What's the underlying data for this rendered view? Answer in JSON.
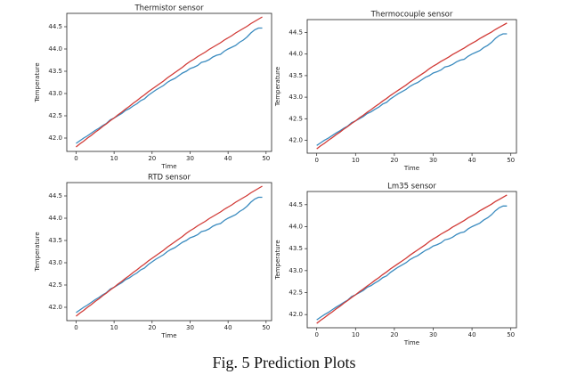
{
  "chart_data": [
    {
      "type": "line",
      "title": "Thermistor sensor",
      "xlabel": "Time",
      "ylabel": "Temperature",
      "x": [
        0,
        1,
        2,
        3,
        4,
        5,
        6,
        7,
        8,
        9,
        10,
        11,
        12,
        13,
        14,
        15,
        16,
        17,
        18,
        19,
        20,
        21,
        22,
        23,
        24,
        25,
        26,
        27,
        28,
        29,
        30,
        31,
        32,
        33,
        34,
        35,
        36,
        37,
        38,
        39,
        40,
        41,
        42,
        43,
        44,
        45,
        46,
        47,
        48,
        49
      ],
      "series": [
        {
          "color": "#3a8bbf",
          "values": [
            41.88,
            41.94,
            42.0,
            42.05,
            42.11,
            42.17,
            42.22,
            42.28,
            42.33,
            42.41,
            42.45,
            42.5,
            42.55,
            42.62,
            42.66,
            42.72,
            42.77,
            42.84,
            42.88,
            42.96,
            43.02,
            43.08,
            43.13,
            43.18,
            43.25,
            43.3,
            43.34,
            43.4,
            43.46,
            43.5,
            43.56,
            43.59,
            43.63,
            43.7,
            43.72,
            43.76,
            43.82,
            43.86,
            43.88,
            43.95,
            44.0,
            44.04,
            44.08,
            44.15,
            44.2,
            44.27,
            44.36,
            44.43,
            44.47,
            44.47
          ]
        },
        {
          "color": "#d13a36",
          "values": [
            41.8,
            41.87,
            41.93,
            42.0,
            42.06,
            42.13,
            42.19,
            42.26,
            42.32,
            42.39,
            42.45,
            42.52,
            42.58,
            42.65,
            42.71,
            42.78,
            42.84,
            42.91,
            42.97,
            43.04,
            43.1,
            43.16,
            43.22,
            43.28,
            43.35,
            43.41,
            43.47,
            43.53,
            43.59,
            43.66,
            43.72,
            43.77,
            43.83,
            43.88,
            43.93,
            43.99,
            44.04,
            44.09,
            44.14,
            44.2,
            44.25,
            44.3,
            44.36,
            44.41,
            44.46,
            44.51,
            44.57,
            44.62,
            44.67,
            44.72
          ]
        }
      ],
      "xlim": [
        -2.45,
        51.45
      ],
      "ylim": [
        41.7,
        44.8
      ],
      "xticks": [
        0,
        10,
        20,
        30,
        40,
        50
      ],
      "yticks": [
        {
          "value": 42,
          "label": "42.0"
        },
        42.5,
        {
          "value": 43,
          "label": "43.0"
        },
        43.5,
        {
          "value": 44,
          "label": "44.0"
        },
        44.5
      ]
    },
    {
      "type": "line",
      "title": "Thermocouple sensor",
      "xlabel": "Time",
      "ylabel": "Temperature",
      "x": [
        0,
        1,
        2,
        3,
        4,
        5,
        6,
        7,
        8,
        9,
        10,
        11,
        12,
        13,
        14,
        15,
        16,
        17,
        18,
        19,
        20,
        21,
        22,
        23,
        24,
        25,
        26,
        27,
        28,
        29,
        30,
        31,
        32,
        33,
        34,
        35,
        36,
        37,
        38,
        39,
        40,
        41,
        42,
        43,
        44,
        45,
        46,
        47,
        48,
        49
      ],
      "series": [
        {
          "color": "#3a8bbf",
          "values": [
            41.88,
            41.94,
            42.0,
            42.05,
            42.11,
            42.17,
            42.22,
            42.28,
            42.33,
            42.41,
            42.45,
            42.5,
            42.55,
            42.62,
            42.66,
            42.72,
            42.77,
            42.84,
            42.88,
            42.96,
            43.02,
            43.08,
            43.13,
            43.18,
            43.25,
            43.3,
            43.34,
            43.4,
            43.46,
            43.5,
            43.56,
            43.59,
            43.63,
            43.7,
            43.72,
            43.76,
            43.82,
            43.86,
            43.88,
            43.95,
            44.0,
            44.04,
            44.08,
            44.15,
            44.2,
            44.27,
            44.36,
            44.43,
            44.47,
            44.47
          ]
        },
        {
          "color": "#d13a36",
          "values": [
            41.8,
            41.87,
            41.93,
            42.0,
            42.06,
            42.13,
            42.19,
            42.26,
            42.32,
            42.39,
            42.45,
            42.52,
            42.58,
            42.65,
            42.71,
            42.78,
            42.84,
            42.91,
            42.97,
            43.04,
            43.1,
            43.16,
            43.22,
            43.28,
            43.35,
            43.41,
            43.47,
            43.53,
            43.59,
            43.66,
            43.72,
            43.77,
            43.83,
            43.88,
            43.93,
            43.99,
            44.04,
            44.09,
            44.14,
            44.2,
            44.25,
            44.3,
            44.36,
            44.41,
            44.46,
            44.51,
            44.57,
            44.62,
            44.67,
            44.72
          ]
        }
      ],
      "xlim": [
        -2.45,
        51.45
      ],
      "ylim": [
        41.7,
        44.8
      ],
      "xticks": [
        0,
        10,
        20,
        30,
        40,
        50
      ],
      "yticks": [
        {
          "value": 42,
          "label": "42.0"
        },
        42.5,
        {
          "value": 43,
          "label": "43.0"
        },
        43.5,
        {
          "value": 44,
          "label": "44.0"
        },
        44.5
      ]
    },
    {
      "type": "line",
      "title": "RTD sensor",
      "xlabel": "Time",
      "ylabel": "Temperature",
      "x": [
        0,
        1,
        2,
        3,
        4,
        5,
        6,
        7,
        8,
        9,
        10,
        11,
        12,
        13,
        14,
        15,
        16,
        17,
        18,
        19,
        20,
        21,
        22,
        23,
        24,
        25,
        26,
        27,
        28,
        29,
        30,
        31,
        32,
        33,
        34,
        35,
        36,
        37,
        38,
        39,
        40,
        41,
        42,
        43,
        44,
        45,
        46,
        47,
        48,
        49
      ],
      "series": [
        {
          "color": "#3a8bbf",
          "values": [
            41.88,
            41.94,
            42.0,
            42.05,
            42.11,
            42.17,
            42.22,
            42.28,
            42.33,
            42.41,
            42.45,
            42.5,
            42.55,
            42.62,
            42.66,
            42.72,
            42.77,
            42.84,
            42.88,
            42.96,
            43.02,
            43.08,
            43.13,
            43.18,
            43.25,
            43.3,
            43.34,
            43.4,
            43.46,
            43.5,
            43.56,
            43.59,
            43.63,
            43.7,
            43.72,
            43.76,
            43.82,
            43.86,
            43.88,
            43.95,
            44.0,
            44.04,
            44.08,
            44.15,
            44.2,
            44.27,
            44.36,
            44.43,
            44.47,
            44.47
          ]
        },
        {
          "color": "#d13a36",
          "values": [
            41.8,
            41.87,
            41.93,
            42.0,
            42.06,
            42.13,
            42.19,
            42.26,
            42.32,
            42.39,
            42.45,
            42.52,
            42.58,
            42.65,
            42.71,
            42.78,
            42.84,
            42.91,
            42.97,
            43.04,
            43.1,
            43.16,
            43.22,
            43.28,
            43.35,
            43.41,
            43.47,
            43.53,
            43.59,
            43.66,
            43.72,
            43.77,
            43.83,
            43.88,
            43.93,
            43.99,
            44.04,
            44.09,
            44.14,
            44.2,
            44.25,
            44.3,
            44.36,
            44.41,
            44.46,
            44.51,
            44.57,
            44.62,
            44.67,
            44.72
          ]
        }
      ],
      "xlim": [
        -2.45,
        51.45
      ],
      "ylim": [
        41.7,
        44.8
      ],
      "xticks": [
        0,
        10,
        20,
        30,
        40,
        50
      ],
      "yticks": [
        {
          "value": 42,
          "label": "42.0"
        },
        42.5,
        {
          "value": 43,
          "label": "43.0"
        },
        43.5,
        {
          "value": 44,
          "label": "44.0"
        },
        44.5
      ]
    },
    {
      "type": "line",
      "title": "Lm35 sensor",
      "xlabel": "Time",
      "ylabel": "Temperature",
      "x": [
        0,
        1,
        2,
        3,
        4,
        5,
        6,
        7,
        8,
        9,
        10,
        11,
        12,
        13,
        14,
        15,
        16,
        17,
        18,
        19,
        20,
        21,
        22,
        23,
        24,
        25,
        26,
        27,
        28,
        29,
        30,
        31,
        32,
        33,
        34,
        35,
        36,
        37,
        38,
        39,
        40,
        41,
        42,
        43,
        44,
        45,
        46,
        47,
        48,
        49
      ],
      "series": [
        {
          "color": "#3a8bbf",
          "values": [
            41.88,
            41.94,
            42.0,
            42.05,
            42.11,
            42.17,
            42.22,
            42.28,
            42.33,
            42.41,
            42.45,
            42.5,
            42.55,
            42.62,
            42.66,
            42.72,
            42.77,
            42.84,
            42.88,
            42.96,
            43.02,
            43.08,
            43.13,
            43.18,
            43.25,
            43.3,
            43.34,
            43.4,
            43.46,
            43.5,
            43.56,
            43.59,
            43.63,
            43.7,
            43.72,
            43.76,
            43.82,
            43.86,
            43.88,
            43.95,
            44.0,
            44.04,
            44.08,
            44.15,
            44.2,
            44.27,
            44.36,
            44.43,
            44.47,
            44.47
          ]
        },
        {
          "color": "#d13a36",
          "values": [
            41.8,
            41.87,
            41.93,
            42.0,
            42.06,
            42.13,
            42.19,
            42.26,
            42.32,
            42.39,
            42.45,
            42.52,
            42.58,
            42.65,
            42.71,
            42.78,
            42.84,
            42.91,
            42.97,
            43.04,
            43.1,
            43.16,
            43.22,
            43.28,
            43.35,
            43.41,
            43.47,
            43.53,
            43.59,
            43.66,
            43.72,
            43.77,
            43.83,
            43.88,
            43.93,
            43.99,
            44.04,
            44.09,
            44.14,
            44.2,
            44.25,
            44.3,
            44.36,
            44.41,
            44.46,
            44.51,
            44.57,
            44.62,
            44.67,
            44.72
          ]
        }
      ],
      "xlim": [
        -2.45,
        51.45
      ],
      "ylim": [
        41.7,
        44.8
      ],
      "xticks": [
        0,
        10,
        20,
        30,
        40,
        50
      ],
      "yticks": [
        {
          "value": 42,
          "label": "42.0"
        },
        42.5,
        {
          "value": 43,
          "label": "43.0"
        },
        43.5,
        {
          "value": 44,
          "label": "44.0"
        },
        44.5
      ]
    }
  ],
  "caption": "Fig. 5 Prediction Plots"
}
